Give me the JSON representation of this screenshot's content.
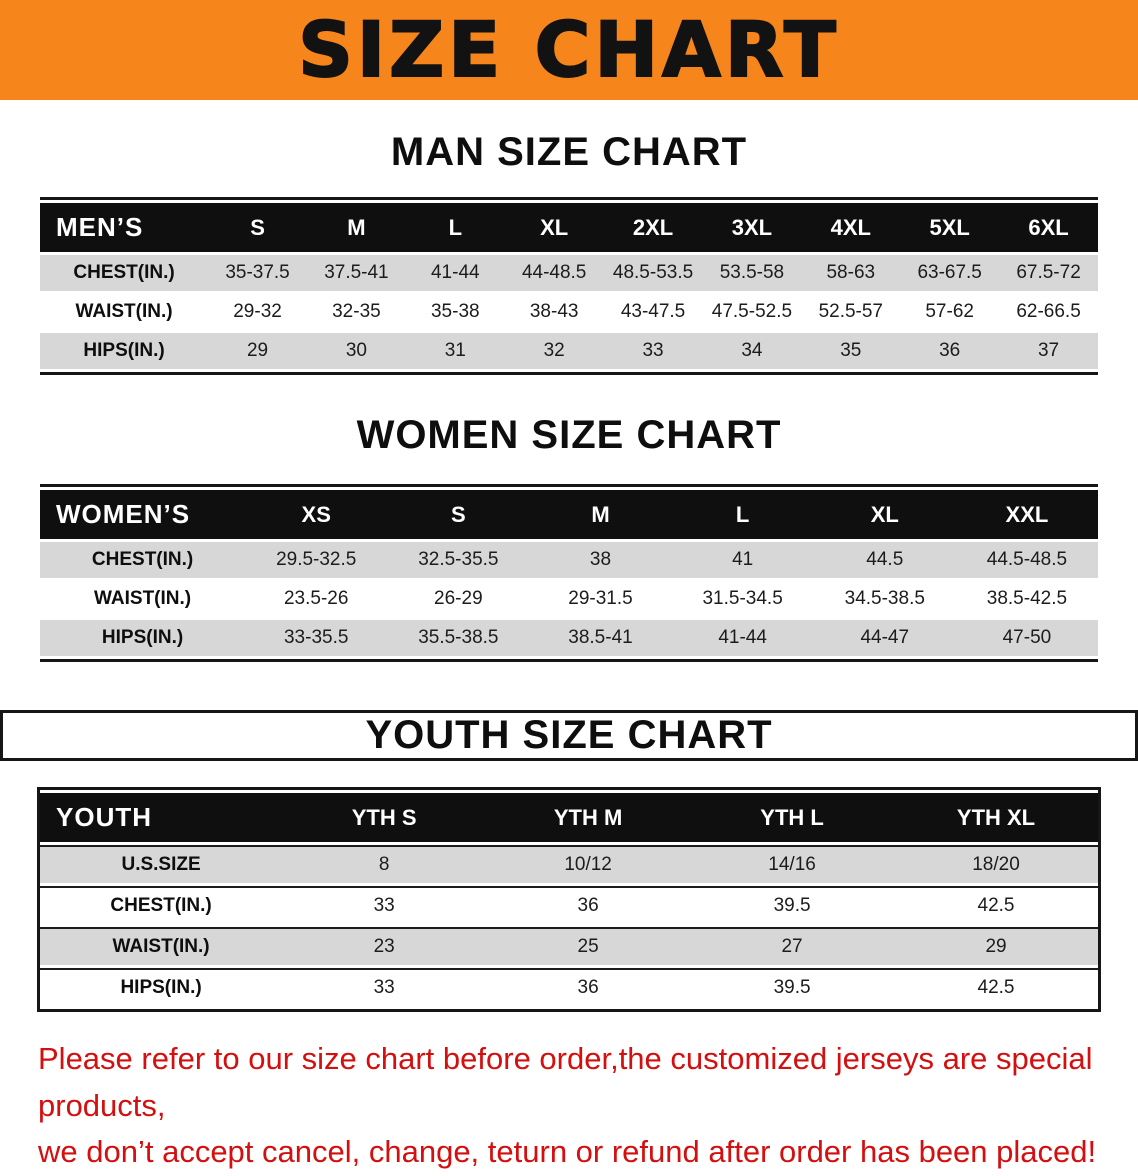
{
  "banner": {
    "title": "SIZE CHART",
    "bg_color": "#f6851c"
  },
  "tables": [
    {
      "name": "men",
      "title": "MAN SIZE CHART",
      "corner": "MEN’S",
      "columns": [
        "S",
        "M",
        "L",
        "XL",
        "2XL",
        "3XL",
        "4XL",
        "5XL",
        "6XL"
      ],
      "rows": [
        {
          "label": "CHEST(IN.)",
          "values": [
            "35-37.5",
            "37.5-41",
            "41-44",
            "44-48.5",
            "48.5-53.5",
            "53.5-58",
            "58-63",
            "63-67.5",
            "67.5-72"
          ]
        },
        {
          "label": "WAIST(IN.)",
          "values": [
            "29-32",
            "32-35",
            "35-38",
            "38-43",
            "43-47.5",
            "47.5-52.5",
            "52.5-57",
            "57-62",
            "62-66.5"
          ]
        },
        {
          "label": "HIPS(IN.)",
          "values": [
            "29",
            "30",
            "31",
            "32",
            "33",
            "34",
            "35",
            "36",
            "37"
          ]
        }
      ]
    },
    {
      "name": "women",
      "title": "WOMEN SIZE CHART",
      "corner": "WOMEN’S",
      "columns": [
        "XS",
        "S",
        "M",
        "L",
        "XL",
        "XXL"
      ],
      "rows": [
        {
          "label": "CHEST(IN.)",
          "values": [
            "29.5-32.5",
            "32.5-35.5",
            "38",
            "41",
            "44.5",
            "44.5-48.5"
          ]
        },
        {
          "label": "WAIST(IN.)",
          "values": [
            "23.5-26",
            "26-29",
            "29-31.5",
            "31.5-34.5",
            "34.5-38.5",
            "38.5-42.5"
          ]
        },
        {
          "label": "HIPS(IN.)",
          "values": [
            "33-35.5",
            "35.5-38.5",
            "38.5-41",
            "41-44",
            "44-47",
            "47-50"
          ]
        }
      ]
    },
    {
      "name": "youth",
      "title": "YOUTH SIZE CHART",
      "corner": "YOUTH",
      "columns": [
        "YTH S",
        "YTH M",
        "YTH L",
        "YTH XL"
      ],
      "rows": [
        {
          "label": "U.S.SIZE",
          "values": [
            "8",
            "10/12",
            "14/16",
            "18/20"
          ]
        },
        {
          "label": "CHEST(IN.)",
          "values": [
            "33",
            "36",
            "39.5",
            "42.5"
          ]
        },
        {
          "label": "WAIST(IN.)",
          "values": [
            "23",
            "25",
            "27",
            "29"
          ]
        },
        {
          "label": "HIPS(IN.)",
          "values": [
            "33",
            "36",
            "39.5",
            "42.5"
          ]
        }
      ]
    }
  ],
  "footer": {
    "color": "#d40f0f",
    "line1": "Please refer to our size chart before order,the customized jerseys are special products,",
    "line2": "we don’t accept cancel, change, teturn or refund after order has been placed!"
  }
}
